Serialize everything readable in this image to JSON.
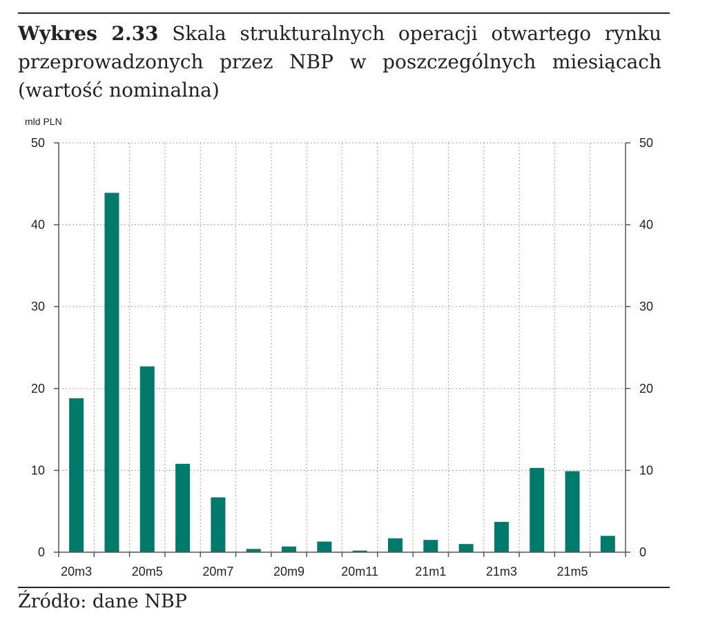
{
  "caption": {
    "number": "Wykres 2.33",
    "text": "Skala strukturalnych operacji otwartego rynku przeprowadzonych przez NBP w poszczególnych miesiącach (wartość nominalna)"
  },
  "source": "Źródło: dane NBP",
  "chart_data": {
    "type": "bar",
    "unit_label": "mld PLN",
    "categories": [
      "20m3",
      "20m4",
      "20m5",
      "20m6",
      "20m7",
      "20m8",
      "20m9",
      "20m10",
      "20m11",
      "20m12",
      "21m1",
      "21m2",
      "21m3",
      "21m4",
      "21m5",
      "21m6"
    ],
    "x_tick_labels": [
      "20m3",
      "",
      "20m5",
      "",
      "20m7",
      "",
      "20m9",
      "",
      "20m11",
      "",
      "21m1",
      "",
      "21m3",
      "",
      "21m5",
      ""
    ],
    "values": [
      18.8,
      43.9,
      22.7,
      10.8,
      6.7,
      0.4,
      0.7,
      1.3,
      0.2,
      1.7,
      1.5,
      1.0,
      3.7,
      10.3,
      9.9,
      2.0
    ],
    "ylim": [
      0,
      50
    ],
    "yticks": [
      0,
      10,
      20,
      30,
      40,
      50
    ],
    "secondary_axis": true,
    "grid": true,
    "bar_color": "#007a6a",
    "grid_color": "#b0b0b0"
  }
}
